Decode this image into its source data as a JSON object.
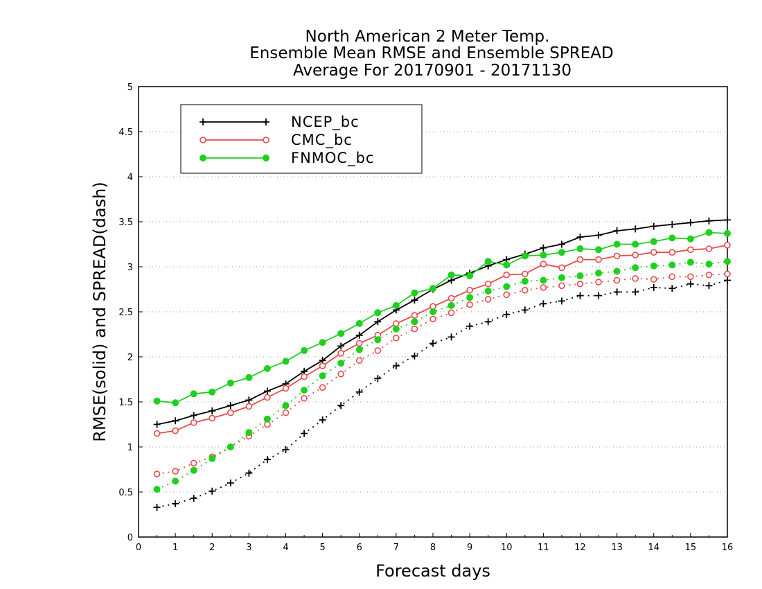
{
  "chart_data": {
    "type": "line",
    "title_lines": [
      "North American 2 Meter Temp.",
      "Ensemble Mean RMSE and Ensemble SPREAD",
      "Average For 20170901 - 20171130"
    ],
    "xlabel": "Forecast days",
    "ylabel": "RMSE(solid) and SPREAD(dash)",
    "xlim": [
      0,
      16
    ],
    "ylim": [
      0,
      5
    ],
    "xticks": [
      "0",
      "1",
      "2",
      "3",
      "4",
      "5",
      "6",
      "7",
      "8",
      "9",
      "10",
      "11",
      "12",
      "13",
      "14",
      "15",
      "16"
    ],
    "yticks": [
      "0",
      "0.5",
      "1",
      "1.5",
      "2",
      "2.5",
      "3",
      "3.5",
      "4",
      "4.5",
      "5"
    ],
    "grid": "dotted horizontal",
    "legend_position": "top-left",
    "x": [
      0.5,
      1,
      1.5,
      2,
      2.5,
      3,
      3.5,
      4,
      4.5,
      5,
      5.5,
      6,
      6.5,
      7,
      7.5,
      8,
      8.5,
      9,
      9.5,
      10,
      10.5,
      11,
      11.5,
      12,
      12.5,
      13,
      13.5,
      14,
      14.5,
      15,
      15.5,
      16
    ],
    "series": [
      {
        "name": "NCEP_bc",
        "color": "#000000",
        "marker": "plus",
        "rmse": [
          1.25,
          1.29,
          1.35,
          1.4,
          1.46,
          1.52,
          1.62,
          1.7,
          1.84,
          1.96,
          2.12,
          2.24,
          2.39,
          2.52,
          2.63,
          2.75,
          2.85,
          2.93,
          3.01,
          3.08,
          3.14,
          3.21,
          3.25,
          3.33,
          3.35,
          3.4,
          3.42,
          3.45,
          3.47,
          3.49,
          3.51,
          3.52
        ],
        "spread": [
          0.33,
          0.37,
          0.43,
          0.51,
          0.6,
          0.71,
          0.86,
          0.97,
          1.15,
          1.3,
          1.46,
          1.61,
          1.76,
          1.9,
          2.01,
          2.15,
          2.22,
          2.34,
          2.39,
          2.47,
          2.52,
          2.59,
          2.62,
          2.68,
          2.68,
          2.72,
          2.72,
          2.77,
          2.76,
          2.81,
          2.79,
          2.85
        ]
      },
      {
        "name": "CMC_bc",
        "color": "#e8484a",
        "marker": "open-circle",
        "rmse": [
          1.15,
          1.18,
          1.27,
          1.32,
          1.38,
          1.45,
          1.55,
          1.65,
          1.78,
          1.9,
          2.04,
          2.15,
          2.24,
          2.37,
          2.46,
          2.56,
          2.65,
          2.74,
          2.81,
          2.91,
          2.92,
          3.03,
          2.99,
          3.08,
          3.08,
          3.12,
          3.13,
          3.16,
          3.16,
          3.19,
          3.2,
          3.24
        ],
        "spread": [
          0.7,
          0.73,
          0.82,
          0.89,
          1.0,
          1.12,
          1.25,
          1.38,
          1.54,
          1.66,
          1.81,
          1.96,
          2.07,
          2.21,
          2.31,
          2.42,
          2.49,
          2.58,
          2.64,
          2.69,
          2.74,
          2.77,
          2.79,
          2.81,
          2.83,
          2.85,
          2.87,
          2.86,
          2.89,
          2.89,
          2.91,
          2.92
        ]
      },
      {
        "name": "FNMOC_bc",
        "color": "#1fd01f",
        "marker": "filled-circle",
        "rmse": [
          1.51,
          1.49,
          1.59,
          1.61,
          1.71,
          1.77,
          1.87,
          1.95,
          2.07,
          2.16,
          2.26,
          2.37,
          2.49,
          2.57,
          2.71,
          2.76,
          2.91,
          2.9,
          3.06,
          3.02,
          3.12,
          3.13,
          3.16,
          3.2,
          3.19,
          3.25,
          3.25,
          3.28,
          3.32,
          3.31,
          3.38,
          3.37
        ],
        "spread": [
          0.53,
          0.62,
          0.74,
          0.87,
          1.0,
          1.16,
          1.31,
          1.46,
          1.63,
          1.79,
          1.93,
          2.08,
          2.19,
          2.31,
          2.39,
          2.5,
          2.57,
          2.66,
          2.73,
          2.78,
          2.84,
          2.85,
          2.88,
          2.9,
          2.93,
          2.95,
          2.99,
          3.01,
          3.02,
          3.05,
          3.03,
          3.06
        ]
      }
    ]
  }
}
